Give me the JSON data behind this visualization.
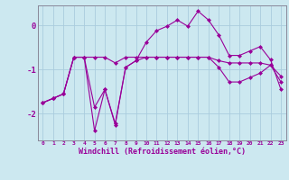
{
  "background_color": "#cce8f0",
  "line_color": "#990099",
  "grid_color": "#aaccdd",
  "xlabel": "Windchill (Refroidissement éolien,°C)",
  "xlim": [
    -0.5,
    23.5
  ],
  "ylim": [
    -2.6,
    0.45
  ],
  "yticks": [
    0,
    -1,
    -2
  ],
  "xtick_labels": [
    "0",
    "1",
    "2",
    "3",
    "4",
    "5",
    "6",
    "7",
    "8",
    "9",
    "10",
    "11",
    "12",
    "13",
    "14",
    "15",
    "16",
    "17",
    "18",
    "19",
    "20",
    "21",
    "22",
    "23"
  ],
  "series1_x": [
    0,
    1,
    2,
    3,
    4,
    5,
    6,
    7,
    8,
    9,
    10,
    11,
    12,
    13,
    14,
    15,
    16,
    17,
    18,
    19,
    20,
    21,
    22,
    23
  ],
  "series1_y": [
    -1.75,
    -1.65,
    -1.55,
    -0.72,
    -0.72,
    -0.72,
    -0.72,
    -0.85,
    -0.72,
    -0.72,
    -0.72,
    -0.72,
    -0.72,
    -0.72,
    -0.72,
    -0.72,
    -0.72,
    -0.8,
    -0.85,
    -0.85,
    -0.85,
    -0.85,
    -0.9,
    -1.15
  ],
  "series2_x": [
    0,
    1,
    2,
    3,
    4,
    5,
    6,
    7,
    8,
    9,
    10,
    11,
    12,
    13,
    14,
    15,
    16,
    17,
    18,
    19,
    20,
    21,
    22,
    23
  ],
  "series2_y": [
    -1.75,
    -1.65,
    -1.55,
    -0.72,
    -0.72,
    -1.85,
    -1.45,
    -2.25,
    -0.95,
    -0.8,
    -0.38,
    -0.12,
    -0.02,
    0.12,
    -0.02,
    0.32,
    0.12,
    -0.22,
    -0.68,
    -0.68,
    -0.58,
    -0.48,
    -0.78,
    -1.45
  ],
  "series3_x": [
    0,
    1,
    2,
    3,
    4,
    5,
    6,
    7,
    8,
    9,
    10,
    11,
    12,
    13,
    14,
    15,
    16,
    17,
    18,
    19,
    20,
    21,
    22,
    23
  ],
  "series3_y": [
    -1.75,
    -1.65,
    -1.55,
    -0.72,
    -0.72,
    -2.38,
    -1.45,
    -2.22,
    -0.95,
    -0.8,
    -0.72,
    -0.72,
    -0.72,
    -0.72,
    -0.72,
    -0.72,
    -0.72,
    -0.95,
    -1.28,
    -1.28,
    -1.18,
    -1.08,
    -0.9,
    -1.28
  ],
  "marker": "D",
  "markersize": 2.0,
  "linewidth": 0.8
}
